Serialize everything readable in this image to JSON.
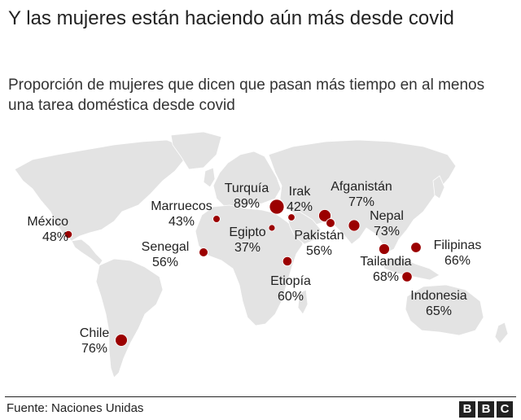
{
  "title": "Y las mujeres están haciendo aún más desde covid",
  "subtitle": "Proporción de mujeres que dicen que pasan más tiempo en al menos una tarea doméstica desde covid",
  "marker_color": "#9b0000",
  "land_color": "#e3e3e3",
  "countries": [
    {
      "key": "mexico",
      "name": "México",
      "pct": "48%",
      "value": 48
    },
    {
      "key": "marruecos",
      "name": "Marruecos",
      "pct": "43%",
      "value": 43
    },
    {
      "key": "senegal",
      "name": "Senegal",
      "pct": "56%",
      "value": 56
    },
    {
      "key": "turquia",
      "name": "Turquía",
      "pct": "89%",
      "value": 89
    },
    {
      "key": "irak",
      "name": "Irak",
      "pct": "42%",
      "value": 42
    },
    {
      "key": "afganistan",
      "name": "Afganistán",
      "pct": "77%",
      "value": 77
    },
    {
      "key": "egipto",
      "name": "Egipto",
      "pct": "37%",
      "value": 37
    },
    {
      "key": "pakistan",
      "name": "Pakistán",
      "pct": "56%",
      "value": 56
    },
    {
      "key": "nepal",
      "name": "Nepal",
      "pct": "73%",
      "value": 73
    },
    {
      "key": "etiopia",
      "name": "Etiopía",
      "pct": "60%",
      "value": 60
    },
    {
      "key": "tailandia",
      "name": "Tailandia",
      "pct": "68%",
      "value": 68
    },
    {
      "key": "filipinas",
      "name": "Filipinas",
      "pct": "66%",
      "value": 66
    },
    {
      "key": "indonesia",
      "name": "Indonesia",
      "pct": "65%",
      "value": 65
    },
    {
      "key": "chile",
      "name": "Chile",
      "pct": "76%",
      "value": 76
    }
  ],
  "footer": {
    "source": "Fuente: Naciones Unidas",
    "logo_letters": [
      "B",
      "B",
      "C"
    ]
  }
}
